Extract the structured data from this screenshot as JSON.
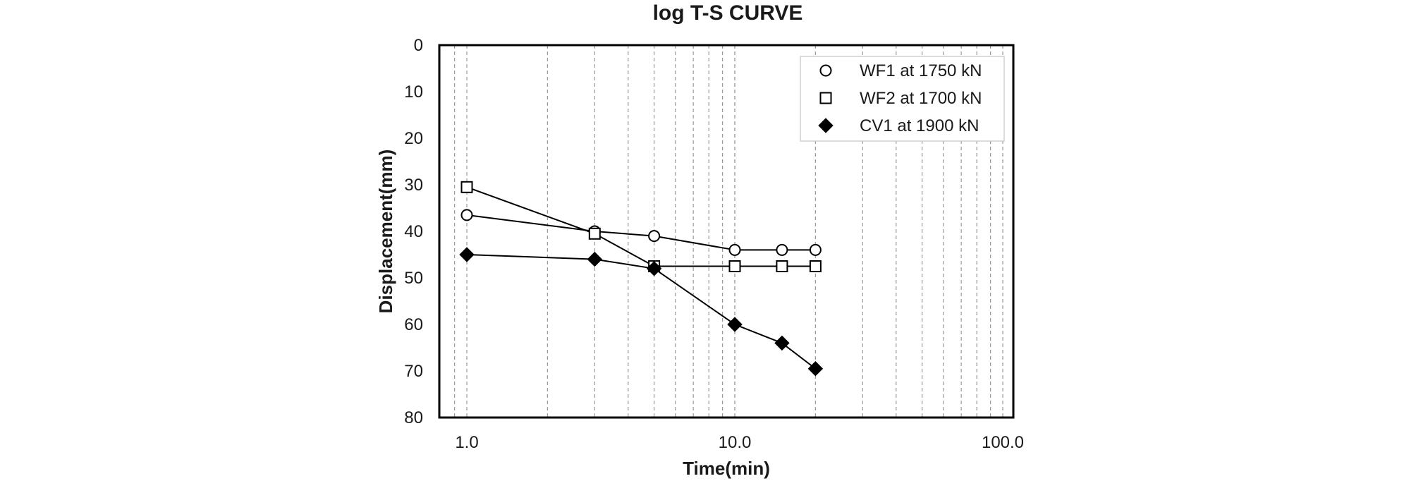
{
  "chart_data": {
    "type": "line",
    "title": "log T-S CURVE",
    "xlabel": "Time(min)",
    "ylabel": "Displacement(mm)",
    "x_scale": "log",
    "xlim": [
      1.0,
      100.0
    ],
    "ylim": [
      0,
      80
    ],
    "y_inverted": true,
    "x_ticks": [
      "1.0",
      "10.0",
      "100.0"
    ],
    "y_ticks": [
      "0",
      "10",
      "20",
      "30",
      "40",
      "50",
      "60",
      "70",
      "80"
    ],
    "grid": "vertical-dashed",
    "legend_position": "top-right",
    "series": [
      {
        "name": "WF1 at 1750 kN",
        "marker": "circle-open",
        "x": [
          1,
          3,
          5,
          10,
          15,
          20
        ],
        "y": [
          36.5,
          40.0,
          41.0,
          44.0,
          44.0,
          44.0
        ]
      },
      {
        "name": "WF2 at 1700 kN",
        "marker": "square-open",
        "x": [
          1,
          3,
          5,
          10,
          15,
          20
        ],
        "y": [
          30.5,
          40.5,
          47.5,
          47.5,
          47.5,
          47.5
        ]
      },
      {
        "name": "CV1 at 1900 kN",
        "marker": "diamond-filled",
        "x": [
          1,
          3,
          5,
          10,
          15,
          20
        ],
        "y": [
          45.0,
          46.0,
          48.0,
          60.0,
          64.0,
          69.5
        ]
      }
    ],
    "colors": {
      "marker": "#000000",
      "line": "#000000",
      "grid": "#9a9a9a",
      "text": "#1a1a1a"
    }
  }
}
